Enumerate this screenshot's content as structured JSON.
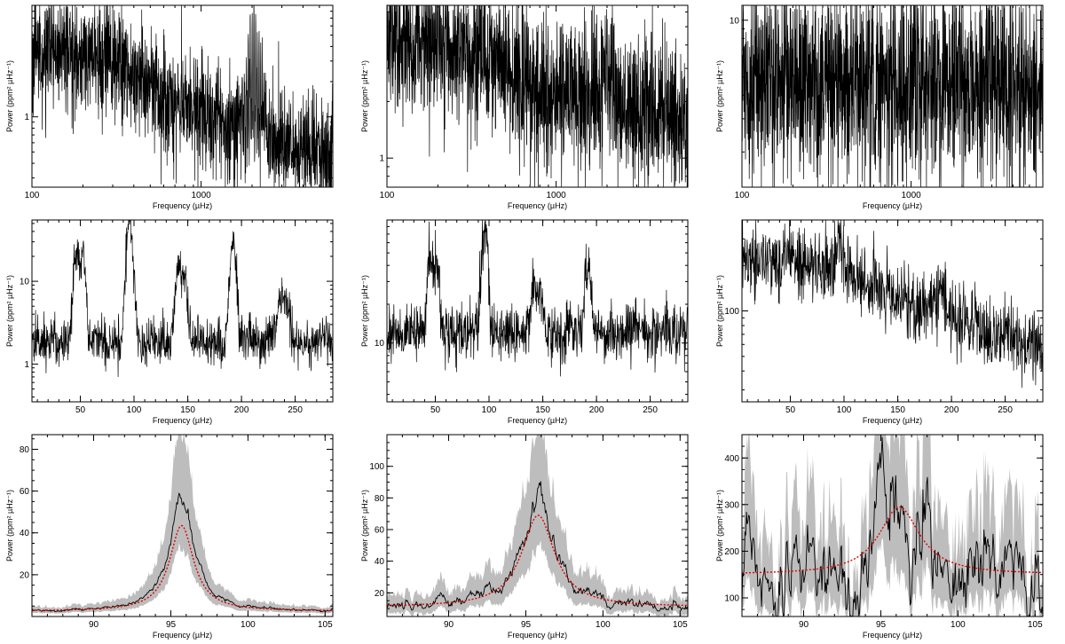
{
  "chart_data": [
    {
      "id": "p1",
      "type": "line",
      "xscale": "log",
      "yscale": "log",
      "xlim": [
        100,
        6000
      ],
      "ylim": [
        0.25,
        9
      ],
      "xticks": [
        100,
        1000
      ],
      "yticks": [
        1
      ],
      "xlabel": "Frequency (µHz)",
      "ylabel": "Power (ppm² µHz⁻¹)",
      "series": [
        {
          "kind": "spectrum",
          "base": [
            [
              100,
              3.5
            ],
            [
              300,
              3.0
            ],
            [
              600,
              1.6
            ],
            [
              1000,
              1.05
            ],
            [
              2000,
              0.75
            ],
            [
              3000,
              0.6
            ],
            [
              6000,
              0.5
            ]
          ],
          "spread": 0.55,
          "envelope": {
            "center": 2050,
            "width": 180,
            "height": 6,
            "spacing": 100,
            "max": 9
          }
        }
      ]
    },
    {
      "id": "p2",
      "type": "line",
      "xscale": "log",
      "yscale": "log",
      "xlim": [
        100,
        6000
      ],
      "ylim": [
        0.7,
        6.5
      ],
      "xticks": [
        100,
        1000
      ],
      "yticks": [
        1
      ],
      "xlabel": "Frequency (µHz)",
      "ylabel": "Power (ppm² µHz⁻¹)",
      "series": [
        {
          "kind": "spectrum",
          "base": [
            [
              100,
              4.5
            ],
            [
              300,
              3.8
            ],
            [
              800,
              2.4
            ],
            [
              1500,
              2.0
            ],
            [
              3000,
              1.7
            ],
            [
              6000,
              1.6
            ]
          ],
          "spread": 0.45,
          "envelope": {
            "center": 2000,
            "width": 160,
            "height": 3.5,
            "spacing": 100,
            "max": 6.5
          }
        }
      ]
    },
    {
      "id": "p3",
      "type": "line",
      "xscale": "log",
      "yscale": "log",
      "xlim": [
        100,
        6000
      ],
      "ylim": [
        1.3,
        12
      ],
      "xticks": [
        100,
        1000
      ],
      "yticks": [
        10
      ],
      "xlabel": "Frequency (µHz)",
      "ylabel": "Power (ppm² µHz⁻¹)",
      "series": [
        {
          "kind": "spectrum",
          "base": [
            [
              100,
              5.0
            ],
            [
              1000,
              4.6
            ],
            [
              6000,
              4.2
            ]
          ],
          "spread": 0.6,
          "envelope": null
        }
      ]
    },
    {
      "id": "p4",
      "type": "line",
      "xscale": "linear",
      "yscale": "log",
      "xlim": [
        5,
        285
      ],
      "ylim": [
        0.35,
        55
      ],
      "xticks": [
        50,
        100,
        150,
        200,
        250
      ],
      "yticks": [
        1,
        10
      ],
      "xlabel": "Frequency (µHz)",
      "ylabel": "Power (ppm² µHz⁻¹)",
      "series": [
        {
          "kind": "autocorr",
          "baseline": 1.9,
          "spread": 0.35,
          "peaks": [
            [
              46,
              24,
              2.0
            ],
            [
              52,
              22,
              2.0
            ],
            [
              96,
              50,
              2.4
            ],
            [
              141,
              14,
              2.2
            ],
            [
              147,
              12,
              2.2
            ],
            [
              192,
              28,
              2.2
            ],
            [
              237,
              6,
              2.5
            ],
            [
              242,
              5,
              2.5
            ]
          ]
        }
      ]
    },
    {
      "id": "p5",
      "type": "line",
      "xscale": "linear",
      "yscale": "log",
      "xlim": [
        5,
        285
      ],
      "ylim": [
        3.5,
        90
      ],
      "xticks": [
        50,
        100,
        150,
        200,
        250
      ],
      "yticks": [
        10
      ],
      "xlabel": "Frequency (µHz)",
      "ylabel": "Power (ppm² µHz⁻¹)",
      "series": [
        {
          "kind": "autocorr",
          "baseline": 12,
          "spread": 0.25,
          "peaks": [
            [
              45,
              46,
              2.2
            ],
            [
              51,
              42,
              2.2
            ],
            [
              96,
              80,
              2.4
            ],
            [
              141,
              28,
              2.4
            ],
            [
              147,
              26,
              2.4
            ],
            [
              192,
              42,
              2.3
            ],
            [
              238,
              15,
              2.6
            ]
          ]
        }
      ]
    },
    {
      "id": "p6",
      "type": "line",
      "xscale": "linear",
      "yscale": "log",
      "xlim": [
        5,
        285
      ],
      "ylim": [
        25,
        400
      ],
      "xticks": [
        50,
        100,
        150,
        200,
        250
      ],
      "yticks": [
        100
      ],
      "xlabel": "Frequency (µHz)",
      "ylabel": "Power (ppm² µHz⁻¹)",
      "series": [
        {
          "kind": "autocorr",
          "baseline": 0,
          "spread": 0.28,
          "trend": [
            [
              5,
              220
            ],
            [
              100,
              180
            ],
            [
              150,
              120
            ],
            [
              200,
              90
            ],
            [
              240,
              70
            ],
            [
              285,
              55
            ]
          ],
          "peaks": [
            [
              50,
              290,
              3.5
            ],
            [
              96,
              300,
              2.5
            ],
            [
              190,
              140,
              2.5
            ]
          ]
        }
      ]
    },
    {
      "id": "p7",
      "type": "line",
      "xscale": "linear",
      "yscale": "linear",
      "xlim": [
        86,
        105.5
      ],
      "ylim": [
        0,
        87
      ],
      "xticks": [
        90,
        95,
        100,
        105
      ],
      "yticks": [
        20,
        40,
        60,
        80
      ],
      "xlabel": "Frequency (µHz)",
      "ylabel": "Power (ppm² µHz⁻¹)",
      "series": [
        {
          "kind": "fit",
          "background": 2.5,
          "center": 95.7,
          "height": 41,
          "hwhm": 0.95,
          "data_peak": 55,
          "band_low_frac": 0.6,
          "band_high_frac": 1.55,
          "noise": 0.08
        }
      ]
    },
    {
      "id": "p8",
      "type": "line",
      "xscale": "linear",
      "yscale": "linear",
      "xlim": [
        86,
        105.5
      ],
      "ylim": [
        5,
        120
      ],
      "xticks": [
        90,
        95,
        100,
        105
      ],
      "yticks": [
        20,
        40,
        60,
        80,
        100
      ],
      "xlabel": "Frequency (µHz)",
      "ylabel": "Power (ppm² µHz⁻¹)",
      "series": [
        {
          "kind": "fit",
          "background": 11,
          "center": 95.8,
          "height": 58,
          "hwhm": 1.3,
          "data_peak": 75,
          "band_low_frac": 0.62,
          "band_high_frac": 1.5,
          "noise": 0.1
        }
      ]
    },
    {
      "id": "p9",
      "type": "line",
      "xscale": "linear",
      "yscale": "linear",
      "xlim": [
        86,
        105.5
      ],
      "ylim": [
        60,
        450
      ],
      "xticks": [
        90,
        95,
        100,
        105
      ],
      "yticks": [
        100,
        200,
        300,
        400
      ],
      "xlabel": "Frequency (µHz)",
      "ylabel": "Power (ppm² µHz⁻¹)",
      "series": [
        {
          "kind": "fit",
          "background": 150,
          "center": 96.2,
          "height": 145,
          "hwhm": 1.6,
          "data_peak": 290,
          "band_low_frac": 0.55,
          "band_high_frac": 1.6,
          "noise": 0.2
        }
      ]
    }
  ]
}
